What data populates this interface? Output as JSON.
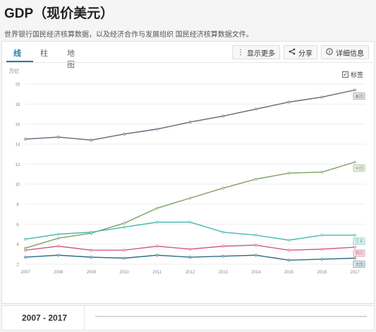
{
  "page": {
    "title": "GDP（现价美元）",
    "subtitle": "世界银行国民经济核算数据，以及经济合作与发展组织 国民经济核算数据文件。"
  },
  "tabs": [
    {
      "label": "线",
      "active": true
    },
    {
      "label": "柱",
      "active": false
    },
    {
      "label": "地图",
      "active": false
    }
  ],
  "toolbar": {
    "more_label": "显示更多",
    "share_label": "分享",
    "details_label": "详细信息",
    "more_icon": "vertical-dots-icon",
    "share_icon": "share-icon",
    "details_icon": "info-icon"
  },
  "labels_toggle": {
    "label": "标签",
    "checked": true
  },
  "footer": {
    "year_range": "2007 - 2017"
  },
  "chart_data": {
    "type": "line",
    "unit_label": "万亿",
    "x": [
      "2007",
      "2008",
      "2009",
      "2010",
      "2011",
      "2012",
      "2013",
      "2014",
      "2015",
      "2016",
      "2017"
    ],
    "ylim": [
      2,
      20
    ],
    "yticks": [
      "2",
      "4",
      "6",
      "8",
      "10",
      "12",
      "14",
      "16",
      "18",
      "20"
    ],
    "grid": true,
    "series": [
      {
        "name": "美国",
        "color": "#5d6b7a",
        "values": [
          14.5,
          14.7,
          14.4,
          15.0,
          15.5,
          16.2,
          16.8,
          17.5,
          18.2,
          18.7,
          19.4
        ]
      },
      {
        "name": "中国",
        "color": "#7f9f61",
        "values": [
          3.6,
          4.6,
          5.1,
          6.1,
          7.6,
          8.6,
          9.6,
          10.5,
          11.1,
          11.2,
          12.2
        ]
      },
      {
        "name": "日本",
        "color": "#47b9b0",
        "values": [
          4.5,
          5.0,
          5.2,
          5.7,
          6.2,
          6.2,
          5.2,
          4.9,
          4.4,
          4.9,
          4.9
        ]
      },
      {
        "name": "德国",
        "color": "#d65b86",
        "values": [
          3.4,
          3.8,
          3.4,
          3.4,
          3.8,
          3.5,
          3.8,
          3.9,
          3.4,
          3.5,
          3.7
        ]
      },
      {
        "name": "法国",
        "color": "#2f6d88",
        "values": [
          2.7,
          2.9,
          2.7,
          2.6,
          2.9,
          2.7,
          2.8,
          2.9,
          2.4,
          2.5,
          2.6
        ]
      }
    ]
  }
}
